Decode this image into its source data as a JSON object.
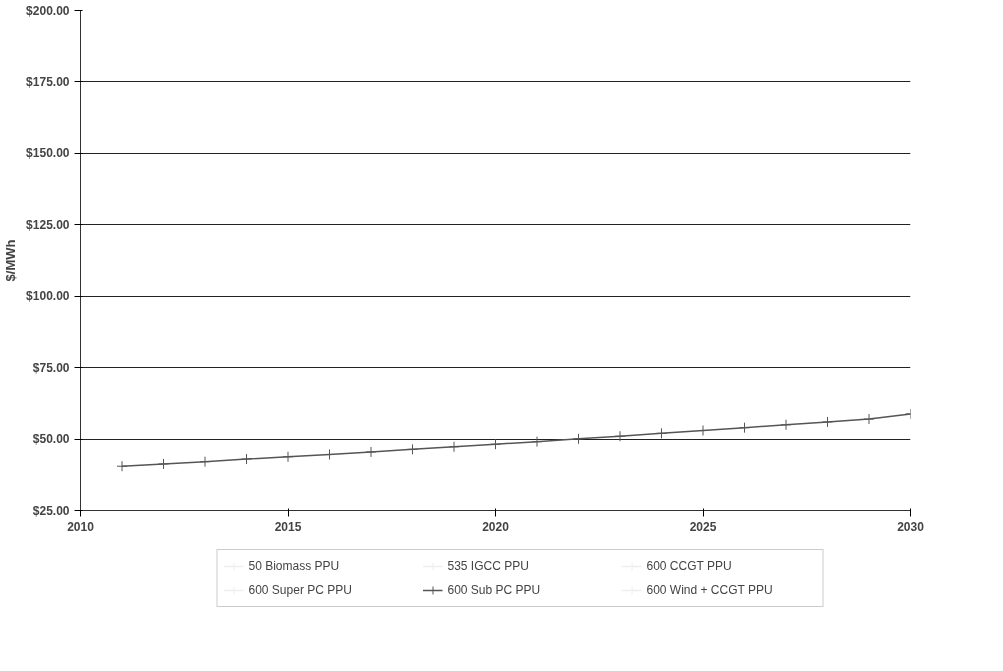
{
  "chart_data": {
    "type": "line",
    "ylabel": "$/MWh",
    "x": [
      2011,
      2012,
      2013,
      2014,
      2015,
      2016,
      2017,
      2018,
      2019,
      2020,
      2021,
      2022,
      2023,
      2024,
      2025,
      2026,
      2027,
      2028,
      2029,
      2030
    ],
    "series": [
      {
        "name": "50 Biomass PPU",
        "color": "#eeeeee",
        "values": [
          null,
          null,
          null,
          null,
          null,
          null,
          null,
          null,
          null,
          null,
          null,
          null,
          null,
          null,
          null,
          null,
          null,
          null,
          null,
          null
        ]
      },
      {
        "name": "535 IGCC PPU",
        "color": "#eeeeee",
        "values": [
          null,
          null,
          null,
          null,
          null,
          null,
          null,
          null,
          null,
          null,
          null,
          null,
          null,
          null,
          null,
          null,
          null,
          null,
          null,
          null
        ]
      },
      {
        "name": "600 CCGT PPU",
        "color": "#eeeeee",
        "values": [
          null,
          null,
          null,
          null,
          null,
          null,
          null,
          null,
          null,
          null,
          null,
          null,
          null,
          null,
          null,
          null,
          null,
          null,
          null,
          null
        ]
      },
      {
        "name": "600 Super PC PPU",
        "color": "#eeeeee",
        "values": [
          null,
          null,
          null,
          null,
          null,
          null,
          null,
          null,
          null,
          null,
          null,
          null,
          null,
          null,
          null,
          null,
          null,
          null,
          null,
          null
        ]
      },
      {
        "name": "600 Sub PC PPU",
        "color": "#555555",
        "values": [
          40.5,
          41.3,
          42.1,
          43.0,
          43.8,
          44.6,
          45.5,
          46.4,
          47.3,
          48.2,
          49.1,
          50.1,
          51.0,
          52.0,
          53.0,
          54.0,
          55.0,
          56.0,
          57.0,
          58.8
        ]
      },
      {
        "name": "600 Wind + CCGT PPU",
        "color": "#eeeeee",
        "values": [
          null,
          null,
          null,
          null,
          null,
          null,
          null,
          null,
          null,
          null,
          null,
          null,
          null,
          null,
          null,
          null,
          null,
          null,
          null,
          null
        ]
      }
    ],
    "xlim": [
      2010,
      2030
    ],
    "xticks": [
      2010,
      2015,
      2020,
      2025,
      2030
    ],
    "ylim": [
      25,
      200
    ],
    "yticks": [
      {
        "value": 25,
        "label": "$25.00"
      },
      {
        "value": 50,
        "label": "$50.00"
      },
      {
        "value": 75,
        "label": "$75.00"
      },
      {
        "value": 100,
        "label": "$100.00"
      },
      {
        "value": 125,
        "label": "$125.00"
      },
      {
        "value": 150,
        "label": "$150.00"
      },
      {
        "value": 175,
        "label": "$175.00"
      },
      {
        "value": 200,
        "label": "$200.00"
      }
    ],
    "grid": "y",
    "legend": "bottom",
    "marker": "cross",
    "line_style": "solid"
  }
}
